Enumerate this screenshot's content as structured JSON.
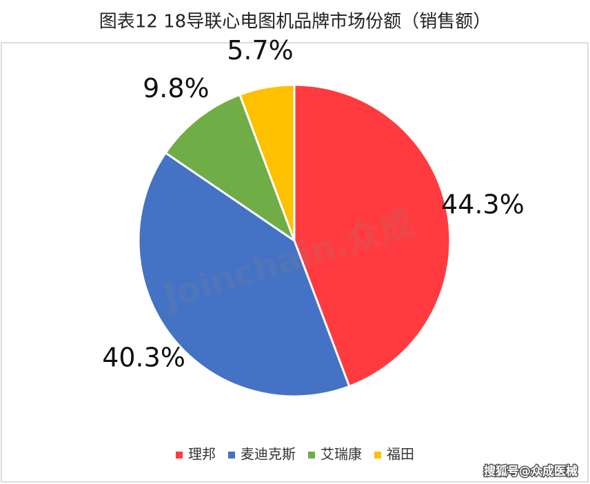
{
  "chart_data": {
    "type": "pie",
    "title": "图表12  18导联心电图机品牌市场份额（销售额）",
    "categories": [
      "理邦",
      "麦迪克斯",
      "艾瑞康",
      "福田"
    ],
    "values": [
      44.3,
      40.3,
      9.8,
      5.7
    ],
    "value_labels": [
      "44.3%",
      "40.3%",
      "9.8%",
      "5.7%"
    ],
    "colors": [
      "#ff3b3f",
      "#4472c4",
      "#70ad47",
      "#ffc000"
    ],
    "legend": "bottom"
  },
  "watermark": "Joinchain.众成",
  "footer": "搜狐号@众成医械"
}
